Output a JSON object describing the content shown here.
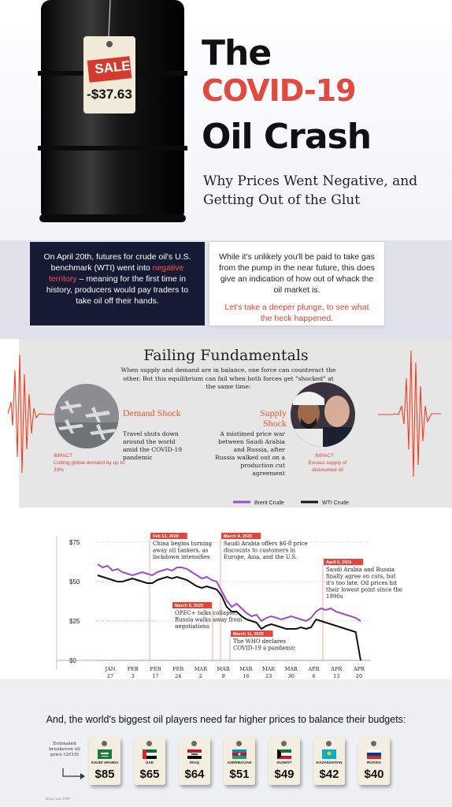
{
  "header": {
    "title_line1": "The",
    "title_line2": "COVID-19",
    "title_line3": "Oil Crash",
    "subtitle": "Why Prices Went Negative, and Getting Out of the Glut",
    "tag_sale": "SALE",
    "tag_price": "-$37.63"
  },
  "intro": {
    "left_before": "On April 20th, futures for crude oil's U.S. benchmark (WTI) went into ",
    "left_highlight": "negative territory",
    "left_after": " – meaning for the first time in history, producers would pay traders to take oil off their hands.",
    "right_text": "While it's unlikely you'll be paid to take gas from the pump in the near future, this does give an indication of how out of whack the oil market is.",
    "right_cta": "Let's take a deeper plunge, to see what the heck happened."
  },
  "fundamentals": {
    "title": "Failing Fundamentals",
    "description": "When supply and demand are in balance, one force can counteract the other. But this equilibrium can fail when both forces get \"shocked\" at the same time:",
    "demand": {
      "title": "Demand Shock",
      "text": "Travel shuts down around the world amid the COVID-19 pandemic",
      "impact_label": "IMPACT",
      "impact_text": "Cutting global demand by up to 33%"
    },
    "supply": {
      "title": "Supply Shock",
      "text": "A mistimed price war between Saudi Arabia and Russia, after Russia walked out on a production cut agreement",
      "impact_label": "IMPACT",
      "impact_text": "Excess supply of discounted oil"
    }
  },
  "chart_data": {
    "type": "line",
    "title": "",
    "ylim": [
      0,
      75
    ],
    "y_ticks": [
      "$75",
      "$50",
      "$25",
      "$0"
    ],
    "y_tick_values": [
      75,
      50,
      25,
      0
    ],
    "x_ticks": [
      {
        "month": "JAN",
        "day": "27"
      },
      {
        "month": "FEB",
        "day": "3"
      },
      {
        "month": "FEB",
        "day": "17"
      },
      {
        "month": "FEB",
        "day": "24"
      },
      {
        "month": "MAR",
        "day": "2"
      },
      {
        "month": "MAR",
        "day": "9"
      },
      {
        "month": "MAR",
        "day": "16"
      },
      {
        "month": "MAR",
        "day": "23"
      },
      {
        "month": "MAR",
        "day": "30"
      },
      {
        "month": "APR",
        "day": "6"
      },
      {
        "month": "APR",
        "day": "13"
      },
      {
        "month": "APR",
        "day": "20"
      }
    ],
    "series": [
      {
        "name": "Brent Crude",
        "color": "#9b4dca",
        "values": [
          61,
          59,
          60,
          57,
          58,
          56,
          55,
          54,
          55,
          56,
          55,
          54,
          56,
          57,
          58,
          57,
          59,
          59,
          58,
          56,
          54,
          52,
          53,
          51,
          50,
          44,
          38,
          34,
          36,
          33,
          30,
          28,
          29,
          25,
          27,
          28,
          27,
          26,
          27,
          28,
          27,
          26,
          25,
          27,
          31,
          33,
          32,
          33,
          31,
          30,
          29,
          28,
          27,
          25
        ]
      },
      {
        "name": "WTI Crude",
        "color": "#111111",
        "values": [
          54,
          53,
          52,
          51,
          50,
          50,
          51,
          52,
          51,
          50,
          49,
          49,
          51,
          52,
          53,
          52,
          53,
          52,
          51,
          49,
          47,
          46,
          47,
          46,
          45,
          41,
          34,
          31,
          31,
          28,
          26,
          25,
          24,
          20,
          22,
          23,
          22,
          21,
          20,
          20,
          20,
          21,
          20,
          21,
          26,
          25,
          24,
          23,
          22,
          21,
          20,
          19,
          18,
          -5
        ]
      }
    ],
    "annotations": [
      {
        "date": "Feb 13, 2020",
        "text": "China begins turning away oil tankers, as lockdown intensifies"
      },
      {
        "date": "March 6, 2020",
        "text": "OPEC+ talks collapse; Russia walks away from negotiations"
      },
      {
        "date": "March 8, 2020",
        "text": "Saudi Arabia offers $6-8 price discounts to customers in Europe, Asia, and the U.S."
      },
      {
        "date": "March 11, 2020",
        "text": "The WHO declares COVID-19 a pandemic"
      },
      {
        "date": "April 9, 2020",
        "text": "Saudi Arabia and Russia finally agree on cuts, but it's too late. Oil prices hit their lowest point since the 1990s"
      }
    ],
    "legend_position": "top-right"
  },
  "budgets": {
    "title": "And, the world's biggest oil players need far higher prices to balance their budgets:",
    "estimate_label": "Estimated breakeven oil price (2019)",
    "countries": [
      {
        "name": "SAUDI ARABIA",
        "price": "$85",
        "flag": "saudi"
      },
      {
        "name": "UAE",
        "price": "$65",
        "flag": "uae"
      },
      {
        "name": "IRAQ",
        "price": "$64",
        "flag": "iraq"
      },
      {
        "name": "AZERBAIJAN",
        "price": "$51",
        "flag": "azerbaijan"
      },
      {
        "name": "KUWAIT",
        "price": "$49",
        "flag": "kuwait"
      },
      {
        "name": "KAZAKHSTAN",
        "price": "$42",
        "flag": "kazakhstan"
      },
      {
        "name": "RUSSIA",
        "price": "$40",
        "flag": "russia"
      }
    ],
    "source": "Data via: IMF"
  },
  "colors": {
    "accent_red": "#e04a3f",
    "navy": "#161a33",
    "brent": "#9b4dca",
    "wti": "#111111"
  }
}
